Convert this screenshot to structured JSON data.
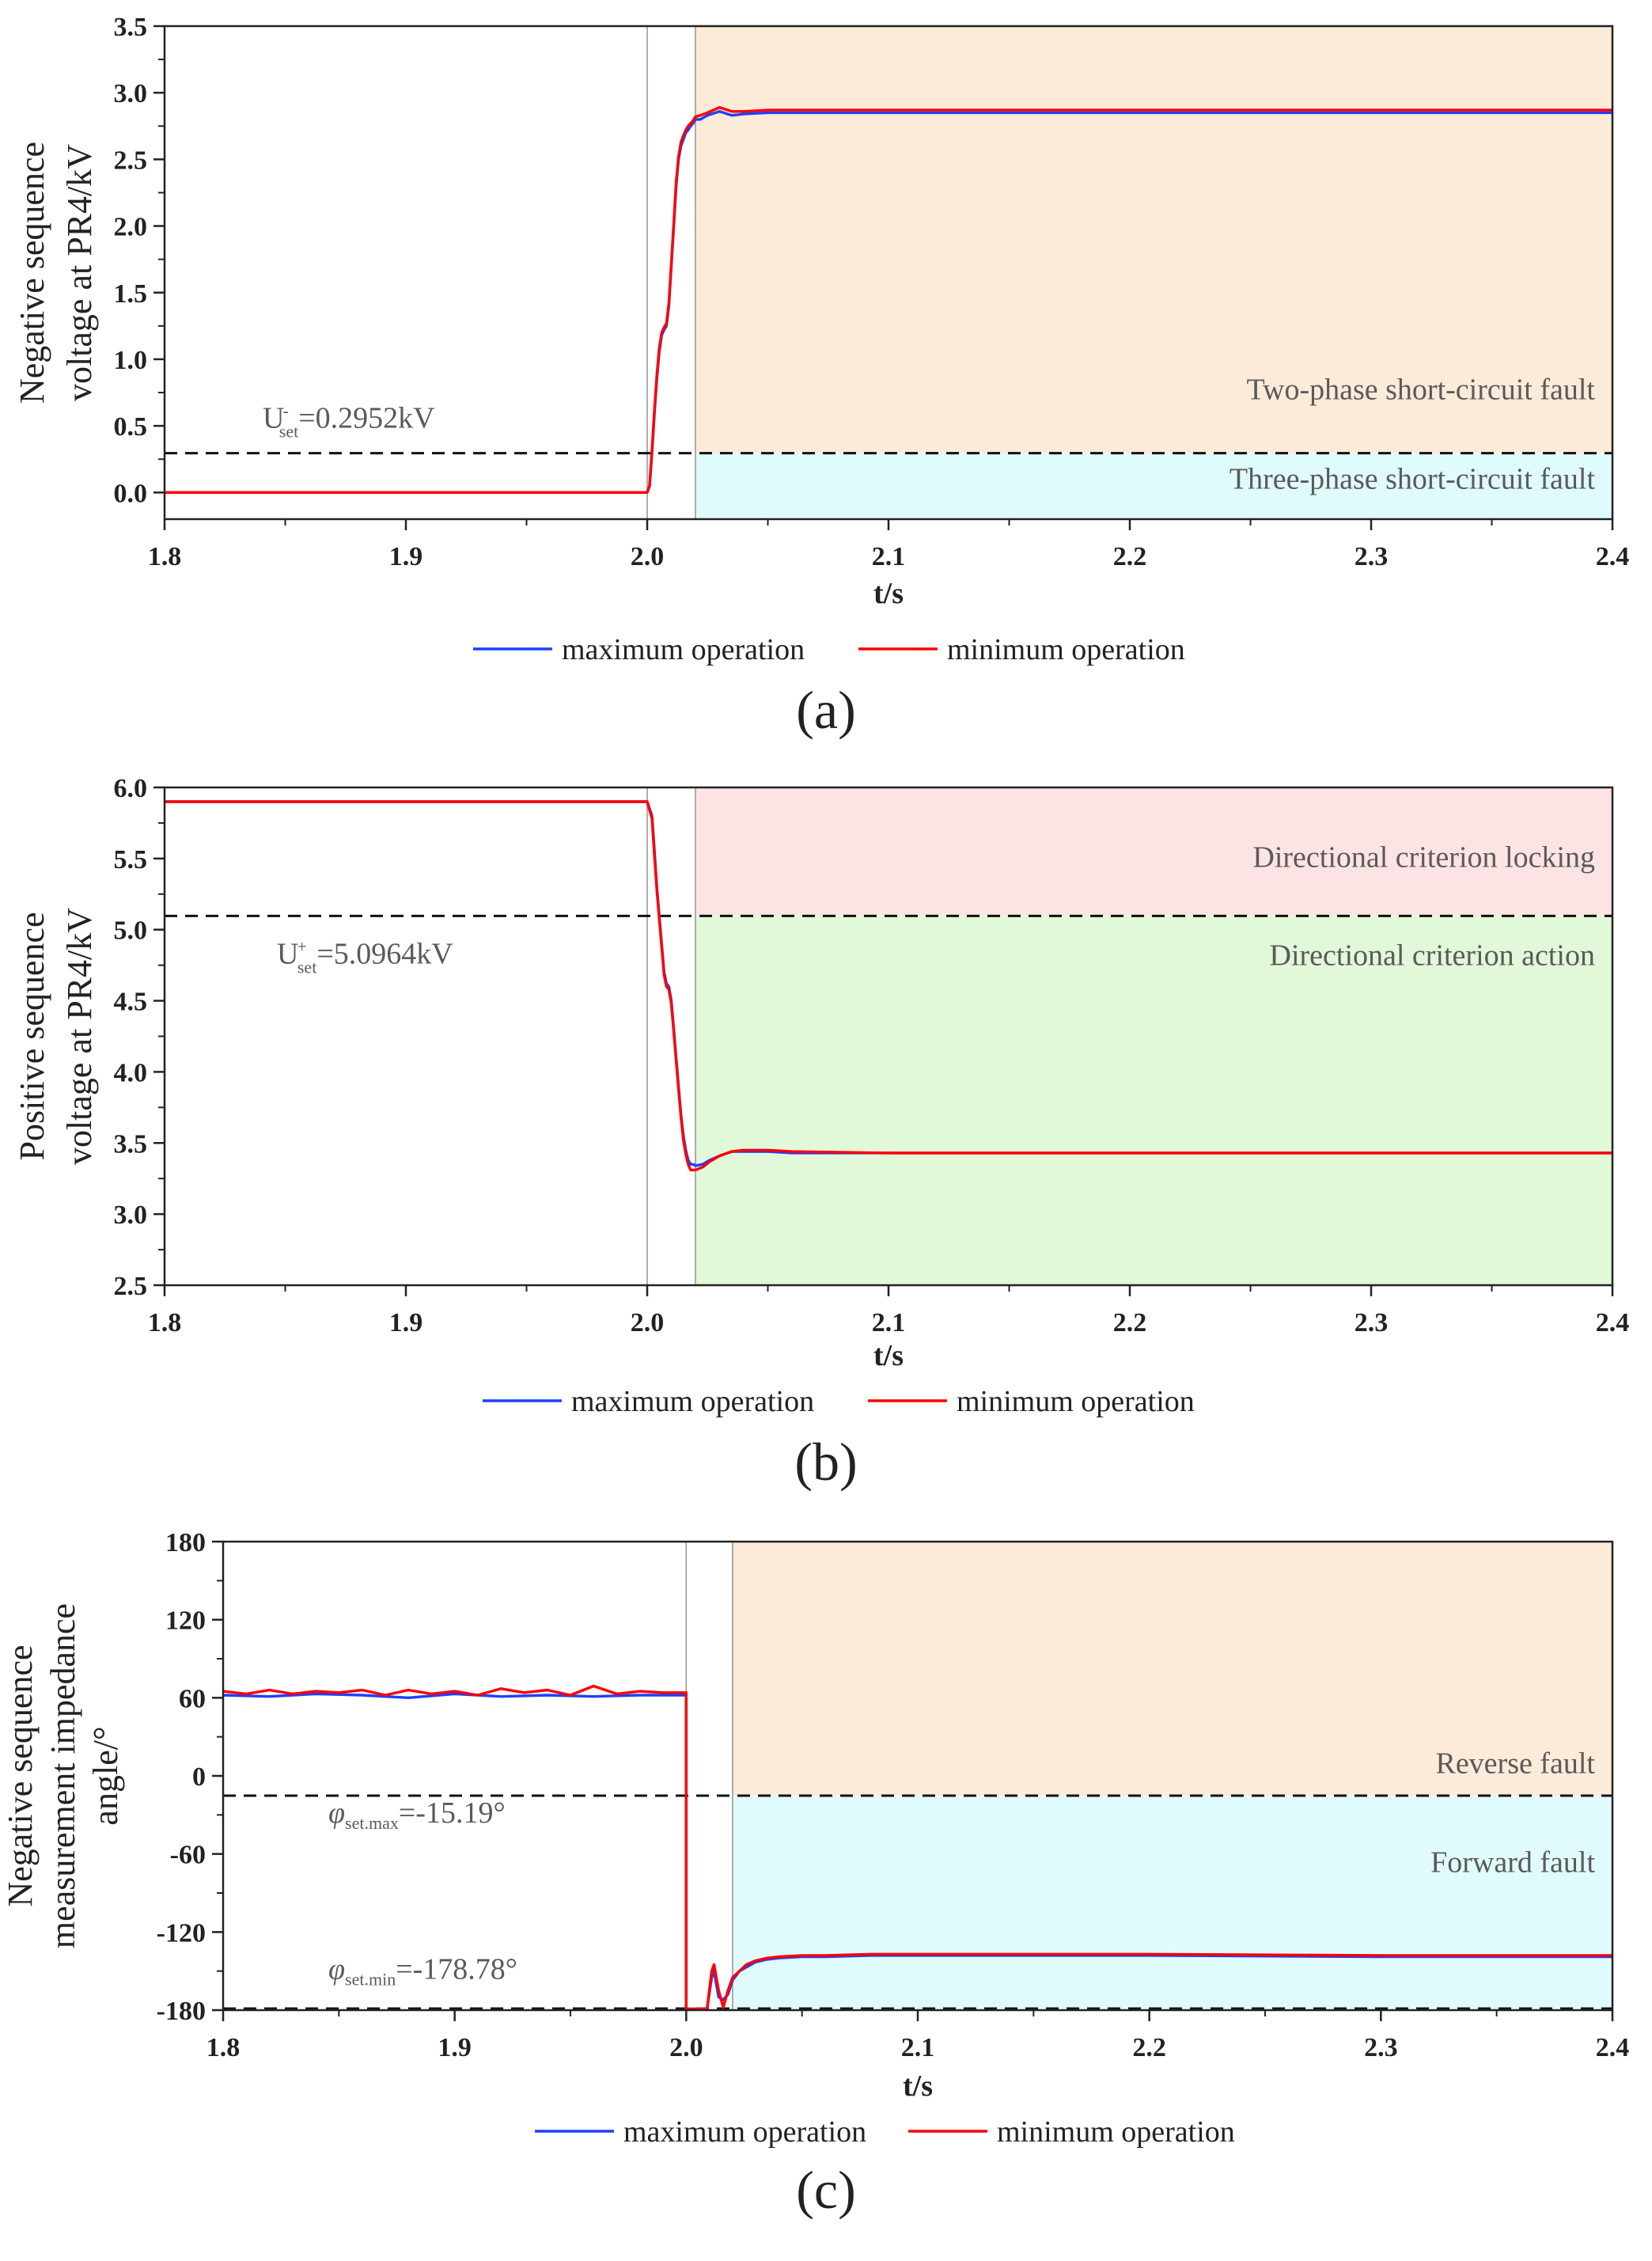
{
  "legend": {
    "max_label": "maximum operation",
    "min_label": "minimum operation"
  },
  "colors": {
    "max": "#1f3fff",
    "min": "#ff0000",
    "orange_region": "#fdebd9",
    "cyan_region": "#e0fbfb",
    "pink_region": "#fde4e4",
    "green_region": "#e1f8d9"
  },
  "chart_data": [
    {
      "id": "a",
      "type": "line",
      "panel_label": "(a)",
      "xlabel": "t/s",
      "ylabel": [
        "Negative sequence",
        "voltage at PR4/kV"
      ],
      "xlim": [
        1.8,
        2.4
      ],
      "ylim": [
        -0.2,
        3.5
      ],
      "xticks": [
        "1.8",
        "1.9",
        "2.0",
        "2.1",
        "2.2",
        "2.3",
        "2.4"
      ],
      "yticks": [
        "0.0",
        "0.5",
        "1.0",
        "1.5",
        "2.0",
        "2.5",
        "3.0",
        "3.5"
      ],
      "threshold": {
        "value": 0.2952,
        "label_prefix": "U",
        "label_sup": "-",
        "label_sub": "set",
        "label_suffix": "=0.2952kV"
      },
      "vlines": [
        2.0,
        2.02
      ],
      "regions": [
        {
          "x_from": 2.02,
          "y_from": 0.2952,
          "y_to": 3.5,
          "color_key": "orange_region",
          "label": "Two-phase short-circuit fault",
          "label_y": 0.7
        },
        {
          "x_from": 2.02,
          "y_from": -0.2,
          "y_to": 0.2952,
          "color_key": "cyan_region",
          "label": "Three-phase short-circuit fault",
          "label_y": 0.03
        }
      ],
      "series": [
        {
          "name": "maximum operation",
          "x": [
            1.8,
            2.0,
            2.001,
            2.002,
            2.003,
            2.004,
            2.005,
            2.006,
            2.007,
            2.008,
            2.009,
            2.01,
            2.011,
            2.012,
            2.013,
            2.014,
            2.015,
            2.016,
            2.017,
            2.018,
            2.019,
            2.02,
            2.022,
            2.025,
            2.03,
            2.035,
            2.04,
            2.05,
            2.06,
            2.1,
            2.2,
            2.3,
            2.4
          ],
          "y": [
            0.0,
            0.0,
            0.05,
            0.3,
            0.6,
            0.85,
            1.05,
            1.18,
            1.22,
            1.25,
            1.4,
            1.7,
            2.0,
            2.3,
            2.5,
            2.6,
            2.65,
            2.7,
            2.72,
            2.75,
            2.77,
            2.8,
            2.8,
            2.83,
            2.86,
            2.83,
            2.84,
            2.85,
            2.85,
            2.85,
            2.85,
            2.85,
            2.85
          ]
        },
        {
          "name": "minimum operation",
          "x": [
            1.8,
            2.0,
            2.001,
            2.002,
            2.003,
            2.004,
            2.005,
            2.006,
            2.007,
            2.008,
            2.009,
            2.01,
            2.011,
            2.012,
            2.013,
            2.014,
            2.015,
            2.016,
            2.017,
            2.018,
            2.019,
            2.02,
            2.022,
            2.025,
            2.03,
            2.035,
            2.04,
            2.05,
            2.06,
            2.1,
            2.2,
            2.3,
            2.4
          ],
          "y": [
            0.0,
            0.0,
            0.05,
            0.32,
            0.62,
            0.88,
            1.08,
            1.2,
            1.24,
            1.27,
            1.42,
            1.72,
            2.02,
            2.33,
            2.52,
            2.63,
            2.68,
            2.72,
            2.75,
            2.77,
            2.79,
            2.82,
            2.83,
            2.85,
            2.89,
            2.86,
            2.86,
            2.87,
            2.87,
            2.87,
            2.87,
            2.87,
            2.87
          ]
        }
      ]
    },
    {
      "id": "b",
      "type": "line",
      "panel_label": "(b)",
      "xlabel": "t/s",
      "ylabel": [
        "Positive sequence",
        "voltage at PR4/kV"
      ],
      "xlim": [
        1.8,
        2.4
      ],
      "ylim": [
        2.5,
        6.0
      ],
      "xticks": [
        "1.8",
        "1.9",
        "2.0",
        "2.1",
        "2.2",
        "2.3",
        "2.4"
      ],
      "yticks": [
        "2.5",
        "3.0",
        "3.5",
        "4.0",
        "4.5",
        "5.0",
        "5.5",
        "6.0"
      ],
      "threshold": {
        "value": 5.0964,
        "label_prefix": "U",
        "label_sup": "+",
        "label_sub": "set",
        "label_suffix": "=5.0964kV"
      },
      "vlines": [
        2.0,
        2.02
      ],
      "regions": [
        {
          "x_from": 2.02,
          "y_from": 5.0964,
          "y_to": 6.0,
          "color_key": "pink_region",
          "label": "Directional criterion locking",
          "label_y": 5.44
        },
        {
          "x_from": 2.02,
          "y_from": 2.5,
          "y_to": 5.0964,
          "color_key": "green_region",
          "label": "Directional criterion action",
          "label_y": 4.75
        }
      ],
      "series": [
        {
          "name": "maximum operation",
          "x": [
            1.8,
            2.0,
            2.002,
            2.003,
            2.004,
            2.005,
            2.006,
            2.007,
            2.008,
            2.009,
            2.01,
            2.011,
            2.012,
            2.013,
            2.014,
            2.015,
            2.016,
            2.017,
            2.018,
            2.019,
            2.02,
            2.023,
            2.026,
            2.03,
            2.035,
            2.04,
            2.05,
            2.06,
            2.1,
            2.2,
            2.3,
            2.4
          ],
          "y": [
            5.9,
            5.9,
            5.8,
            5.55,
            5.3,
            5.1,
            4.9,
            4.7,
            4.62,
            4.6,
            4.5,
            4.3,
            4.1,
            3.9,
            3.7,
            3.55,
            3.45,
            3.38,
            3.35,
            3.35,
            3.34,
            3.35,
            3.38,
            3.41,
            3.44,
            3.44,
            3.44,
            3.43,
            3.43,
            3.43,
            3.43,
            3.43
          ]
        },
        {
          "name": "minimum operation",
          "x": [
            1.8,
            2.0,
            2.002,
            2.003,
            2.004,
            2.005,
            2.006,
            2.007,
            2.008,
            2.009,
            2.01,
            2.011,
            2.012,
            2.013,
            2.014,
            2.015,
            2.016,
            2.017,
            2.018,
            2.019,
            2.02,
            2.023,
            2.026,
            2.03,
            2.035,
            2.04,
            2.05,
            2.06,
            2.1,
            2.2,
            2.3,
            2.4
          ],
          "y": [
            5.9,
            5.9,
            5.78,
            5.52,
            5.28,
            5.08,
            4.88,
            4.68,
            4.6,
            4.58,
            4.48,
            4.28,
            4.08,
            3.88,
            3.68,
            3.52,
            3.42,
            3.35,
            3.31,
            3.31,
            3.31,
            3.33,
            3.37,
            3.41,
            3.44,
            3.45,
            3.45,
            3.44,
            3.43,
            3.43,
            3.43,
            3.43
          ]
        }
      ]
    },
    {
      "id": "c",
      "type": "line",
      "panel_label": "(c)",
      "xlabel": "t/s",
      "ylabel": [
        "Negative sequence",
        "measurement impedance",
        "angle/°"
      ],
      "xlim": [
        1.8,
        2.4
      ],
      "ylim": [
        -180,
        180
      ],
      "xticks": [
        "1.8",
        "1.9",
        "2.0",
        "2.1",
        "2.2",
        "2.3",
        "2.4"
      ],
      "yticks": [
        "-180",
        "-120",
        "-60",
        "0",
        "60",
        "120",
        "180"
      ],
      "thresholds": [
        {
          "value": -15.19,
          "label_prefix": "φ",
          "label_sub": "set.max",
          "label_suffix": "=-15.19°",
          "label_y": -36
        },
        {
          "value": -178.78,
          "label_prefix": "φ",
          "label_sub": "set.min",
          "label_suffix": "=-178.78°",
          "label_y": -156
        }
      ],
      "vlines": [
        2.0,
        2.02
      ],
      "regions": [
        {
          "x_from": 2.02,
          "y_from": -15.19,
          "y_to": 180,
          "color_key": "orange_region",
          "label": "Reverse fault",
          "label_y": 2
        },
        {
          "x_from": 2.02,
          "y_from": -178.78,
          "y_to": -15.19,
          "color_key": "cyan_region",
          "label": "Forward fault",
          "label_y": -74
        }
      ],
      "series": [
        {
          "name": "maximum operation",
          "x": [
            1.8,
            1.82,
            1.84,
            1.86,
            1.88,
            1.9,
            1.92,
            1.94,
            1.96,
            1.98,
            2.0,
            2.0,
            2.003,
            2.006,
            2.009,
            2.011,
            2.012,
            2.014,
            2.016,
            2.018,
            2.02,
            2.023,
            2.026,
            2.03,
            2.035,
            2.04,
            2.05,
            2.06,
            2.08,
            2.1,
            2.15,
            2.2,
            2.3,
            2.4
          ],
          "y": [
            62,
            61,
            63,
            62,
            60,
            63,
            61,
            62,
            61,
            62,
            62,
            -179,
            -179,
            -179,
            -179,
            -155,
            -150,
            -170,
            -172,
            -168,
            -157,
            -150,
            -147,
            -143,
            -141,
            -140,
            -139,
            -139,
            -138,
            -138,
            -138,
            -138,
            -139,
            -139
          ]
        },
        {
          "name": "minimum operation",
          "x": [
            1.8,
            1.81,
            1.82,
            1.83,
            1.84,
            1.85,
            1.86,
            1.87,
            1.88,
            1.89,
            1.9,
            1.91,
            1.92,
            1.93,
            1.94,
            1.95,
            1.96,
            1.97,
            1.98,
            1.99,
            2.0,
            2.0,
            2.003,
            2.006,
            2.009,
            2.011,
            2.012,
            2.014,
            2.016,
            2.018,
            2.02,
            2.023,
            2.026,
            2.03,
            2.035,
            2.04,
            2.05,
            2.06,
            2.08,
            2.1,
            2.15,
            2.2,
            2.3,
            2.4
          ],
          "y": [
            65,
            63,
            66,
            63,
            65,
            64,
            66,
            62,
            66,
            63,
            65,
            62,
            67,
            64,
            66,
            62,
            69,
            63,
            65,
            64,
            64,
            -179,
            -179,
            -179,
            -179,
            -150,
            -145,
            -165,
            -178,
            -165,
            -155,
            -150,
            -145,
            -142,
            -140,
            -139,
            -138,
            -138,
            -137,
            -137,
            -137,
            -137,
            -138,
            -138
          ]
        }
      ]
    }
  ]
}
